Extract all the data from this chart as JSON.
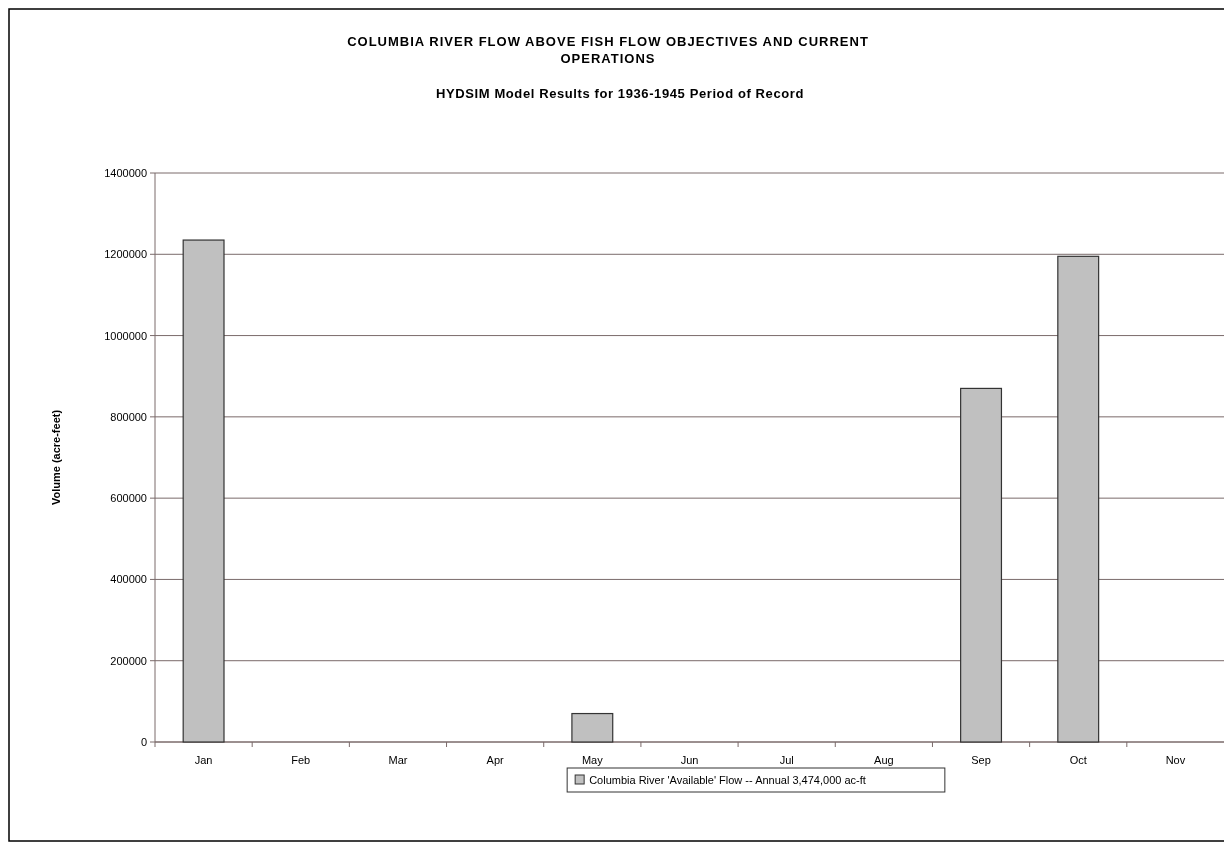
{
  "chart_data": {
    "type": "bar",
    "title": "COLUMBIA RIVER FLOW ABOVE FISH FLOW OBJECTIVES AND CURRENT OPERATIONS",
    "subtitle": "HYDSIM Model Results for 1936-1945 Period of Record",
    "ylabel": "Volume (acre-feet)",
    "categories": [
      "Jan",
      "Feb",
      "Mar",
      "Apr",
      "May",
      "Jun",
      "Jul",
      "Aug",
      "Sep",
      "Oct",
      "Nov"
    ],
    "series": [
      {
        "name": "Columbia River 'Available' Flow -- Annual 3,474,000 ac-ft",
        "color": "#c0c0c0",
        "values": [
          1235000,
          0,
          0,
          0,
          70000,
          0,
          0,
          0,
          870000,
          1195000,
          0
        ]
      }
    ],
    "ylim": [
      0,
      1400000
    ],
    "yticks": [
      0,
      200000,
      400000,
      600000,
      800000,
      1000000,
      1200000,
      1400000
    ],
    "grid": "y",
    "legend": "bottom"
  }
}
